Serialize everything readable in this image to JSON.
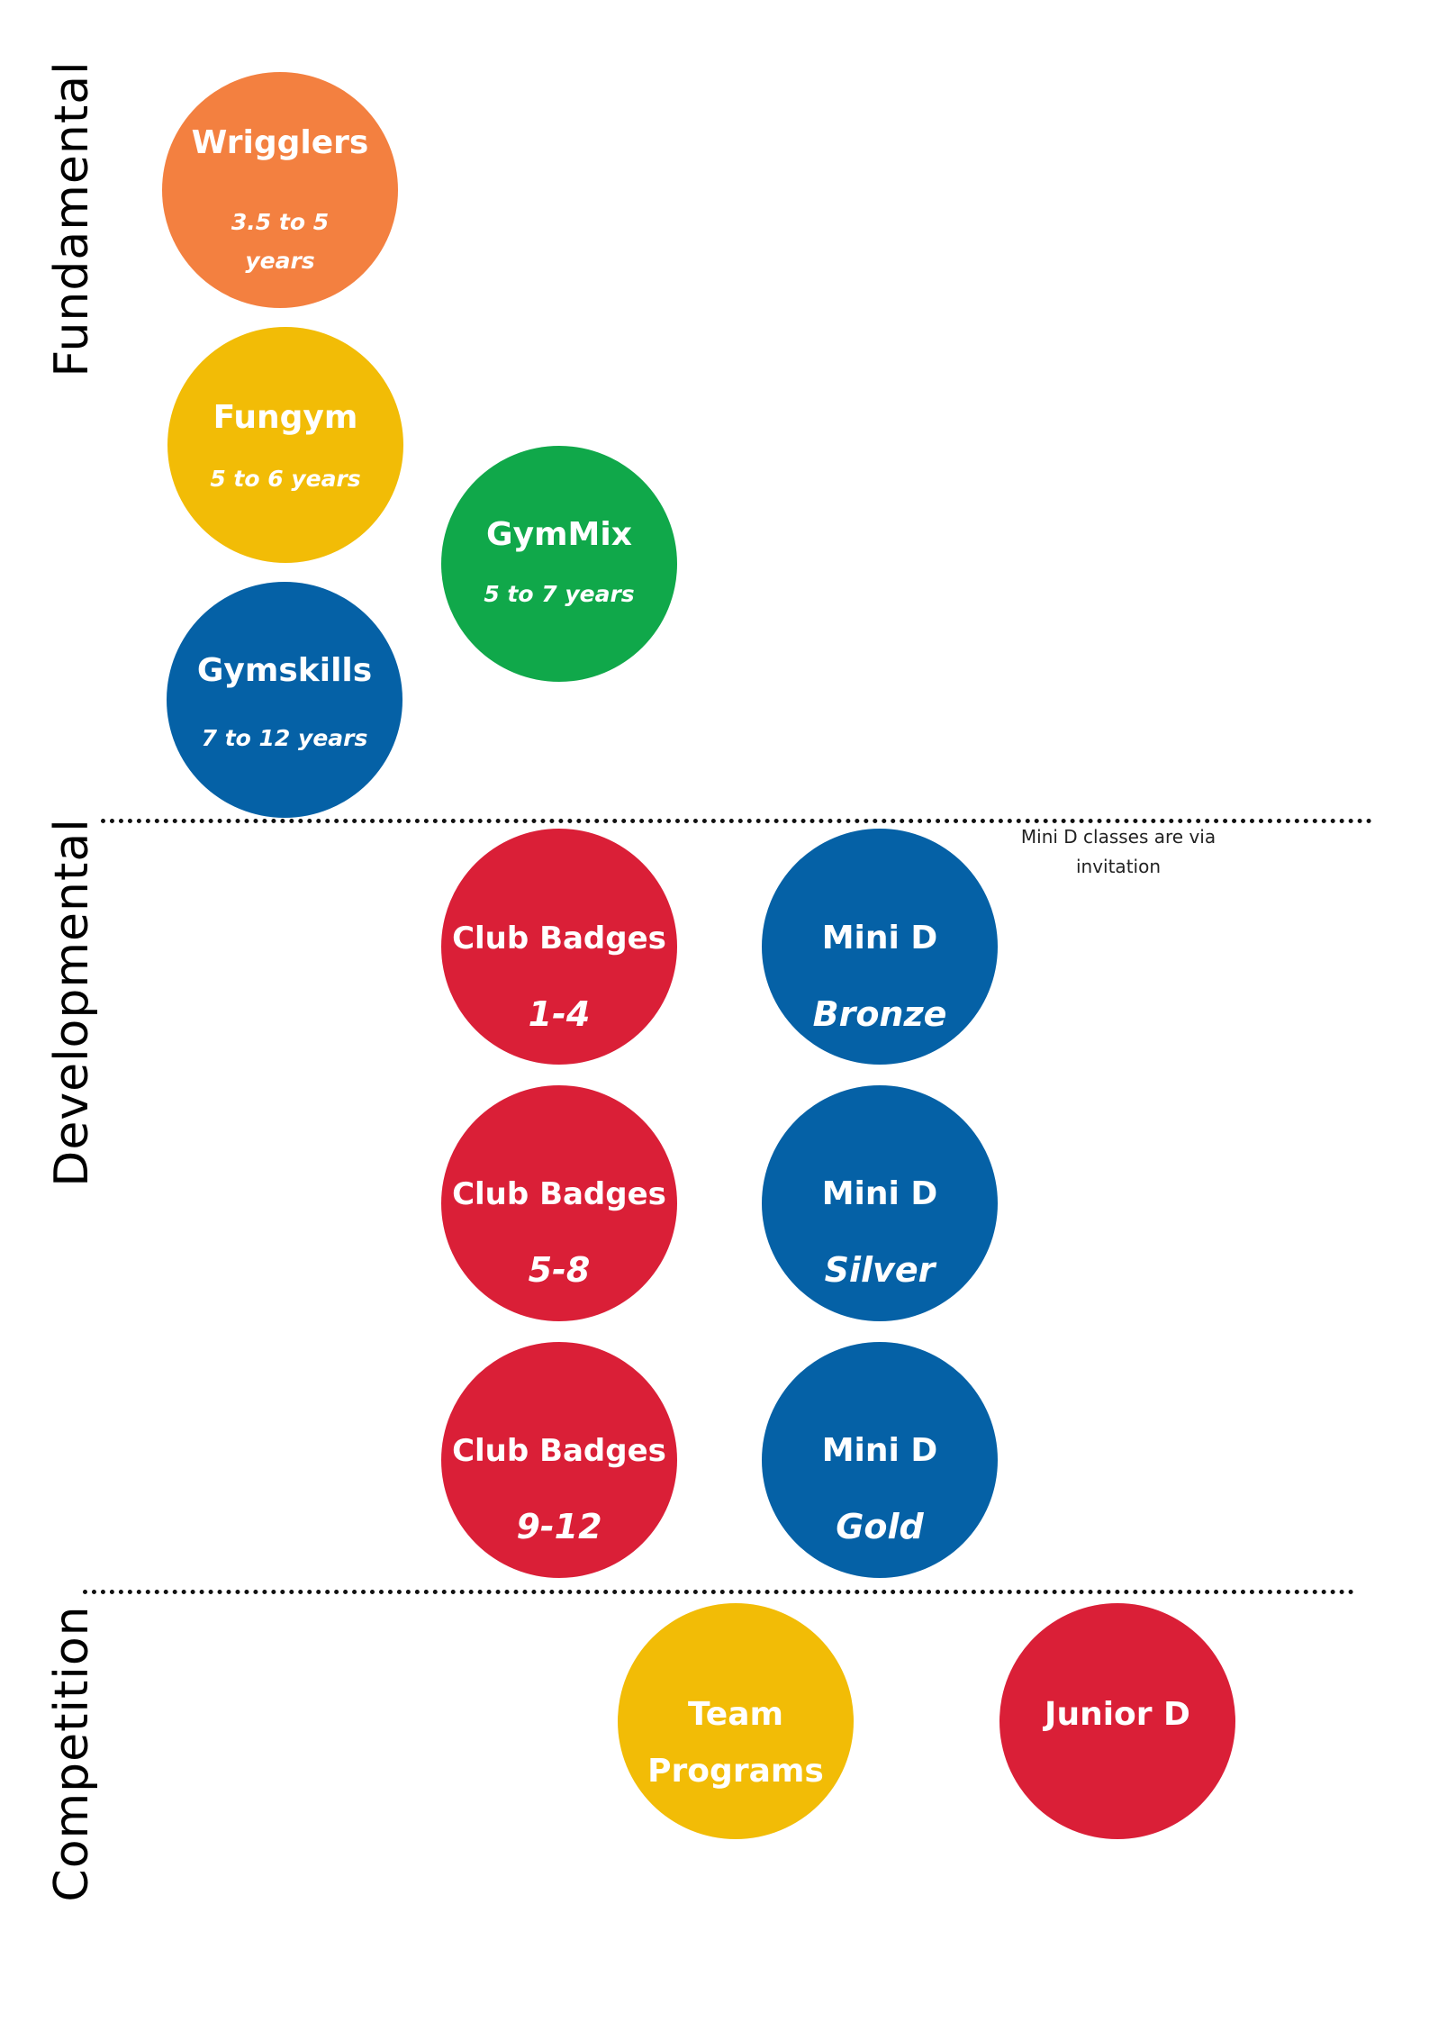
{
  "colors": {
    "orange": "#F38040",
    "yellow": "#F2BC06",
    "green": "#10A84A",
    "blue": "#0561A6",
    "red": "#DA1F37"
  },
  "sections": {
    "fundamental": "Fundamental",
    "developmental": "Developmental",
    "competition": "Competition"
  },
  "programs": {
    "wrigglers": {
      "title": "Wrigglers",
      "age_line1": "3.5 to 5",
      "age_line2": "years"
    },
    "fungym": {
      "title": "Fungym",
      "age": "5 to 6 years"
    },
    "gymmix": {
      "title": "GymMix",
      "age": "5 to 7 years"
    },
    "gymskills": {
      "title": "Gymskills",
      "age": "7 to 12 years"
    },
    "club_badges_1_4": {
      "title": "Club Badges",
      "level": "1-4"
    },
    "club_badges_5_8": {
      "title": "Club Badges",
      "level": "5-8"
    },
    "club_badges_9_12": {
      "title": "Club Badges",
      "level": "9-12"
    },
    "mini_d_bronze": {
      "title": "Mini D",
      "level": "Bronze"
    },
    "mini_d_silver": {
      "title": "Mini D",
      "level": "Silver"
    },
    "mini_d_gold": {
      "title": "Mini D",
      "level": "Gold"
    },
    "team_programs": {
      "line1": "Team",
      "line2": "Programs"
    },
    "junior_d": {
      "title": "Junior D"
    }
  },
  "note": {
    "line1": "Mini D classes are via",
    "line2": "invitation"
  }
}
